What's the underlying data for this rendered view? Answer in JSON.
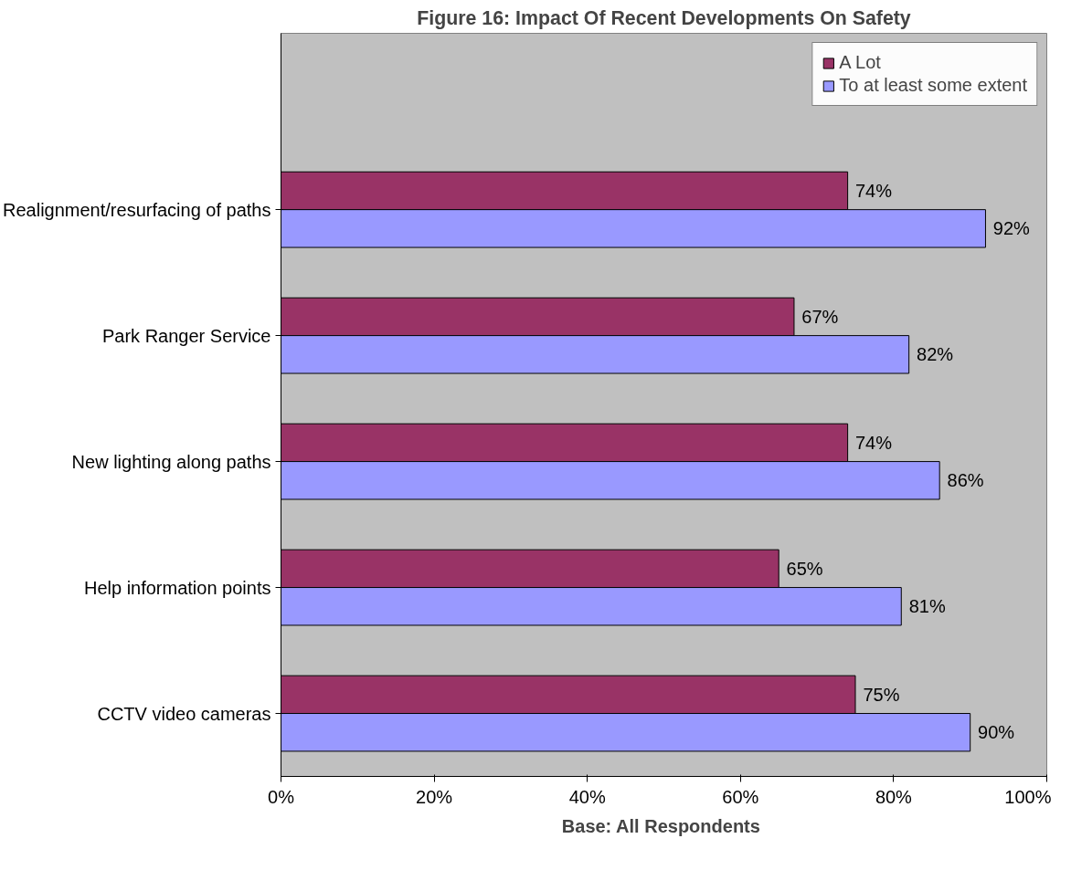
{
  "chart_data": {
    "type": "bar",
    "orientation": "horizontal",
    "title": "Figure 16: Impact Of Recent Developments On Safety",
    "categories": [
      "Realignment/resurfacing of paths",
      "Park Ranger Service",
      "New lighting along paths",
      "Help information points",
      "CCTV video cameras"
    ],
    "series": [
      {
        "name": "A Lot",
        "color": "#993366",
        "values": [
          74,
          67,
          74,
          65,
          75
        ],
        "value_labels": [
          "74%",
          "67%",
          "74%",
          "65%",
          "75%"
        ]
      },
      {
        "name": "To at least some extent",
        "color": "#9999ff",
        "values": [
          92,
          82,
          86,
          81,
          90
        ],
        "value_labels": [
          "92%",
          "82%",
          "86%",
          "81%",
          "90%"
        ]
      }
    ],
    "xlim": [
      0,
      100
    ],
    "xticks": [
      {
        "value": 0,
        "label": "0%"
      },
      {
        "value": 20,
        "label": "20%"
      },
      {
        "value": 40,
        "label": "40%"
      },
      {
        "value": 60,
        "label": "60%"
      },
      {
        "value": 80,
        "label": "80%"
      },
      {
        "value": 100,
        "label": "100%"
      }
    ],
    "legend": "top right",
    "grid": false,
    "annotations": [
      "Base:  All Respondents"
    ]
  }
}
